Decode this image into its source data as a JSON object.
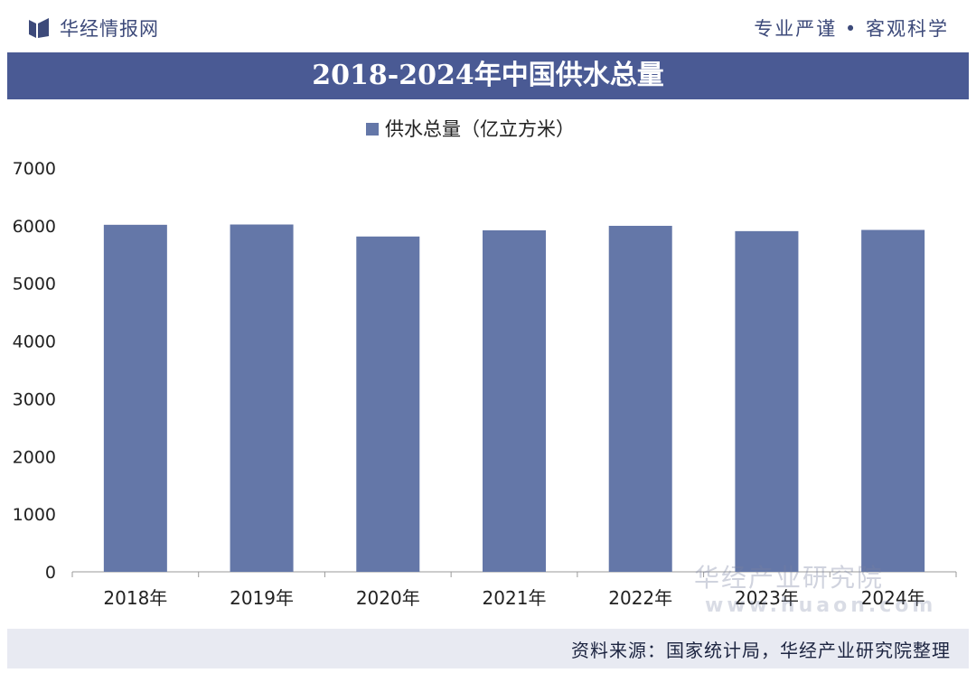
{
  "header": {
    "brand": "华经情报网",
    "slogan": "专业严谨 • 客观科学"
  },
  "title": "2018-2024年中国供水总量",
  "footer": {
    "source": "资料来源：国家统计局，华经产业研究院整理"
  },
  "watermark": {
    "text": "华经产业研究院",
    "url": "www.huaon.com"
  },
  "colors": {
    "bar": "#6477a8",
    "title_bg": "#4a5a94",
    "brand_text": "#3d4a7a"
  },
  "chart_data": {
    "type": "bar",
    "categories": [
      "2018年",
      "2019年",
      "2020年",
      "2021年",
      "2022年",
      "2023年",
      "2024年"
    ],
    "series": [
      {
        "name": "供水总量（亿立方米）",
        "values": [
          6016,
          6021,
          5813,
          5920,
          5998,
          5906,
          5927
        ]
      }
    ],
    "ylim": [
      0,
      7000
    ],
    "yticks": [
      0,
      1000,
      2000,
      3000,
      4000,
      5000,
      6000,
      7000
    ],
    "grid": false,
    "legend": "top-center"
  }
}
